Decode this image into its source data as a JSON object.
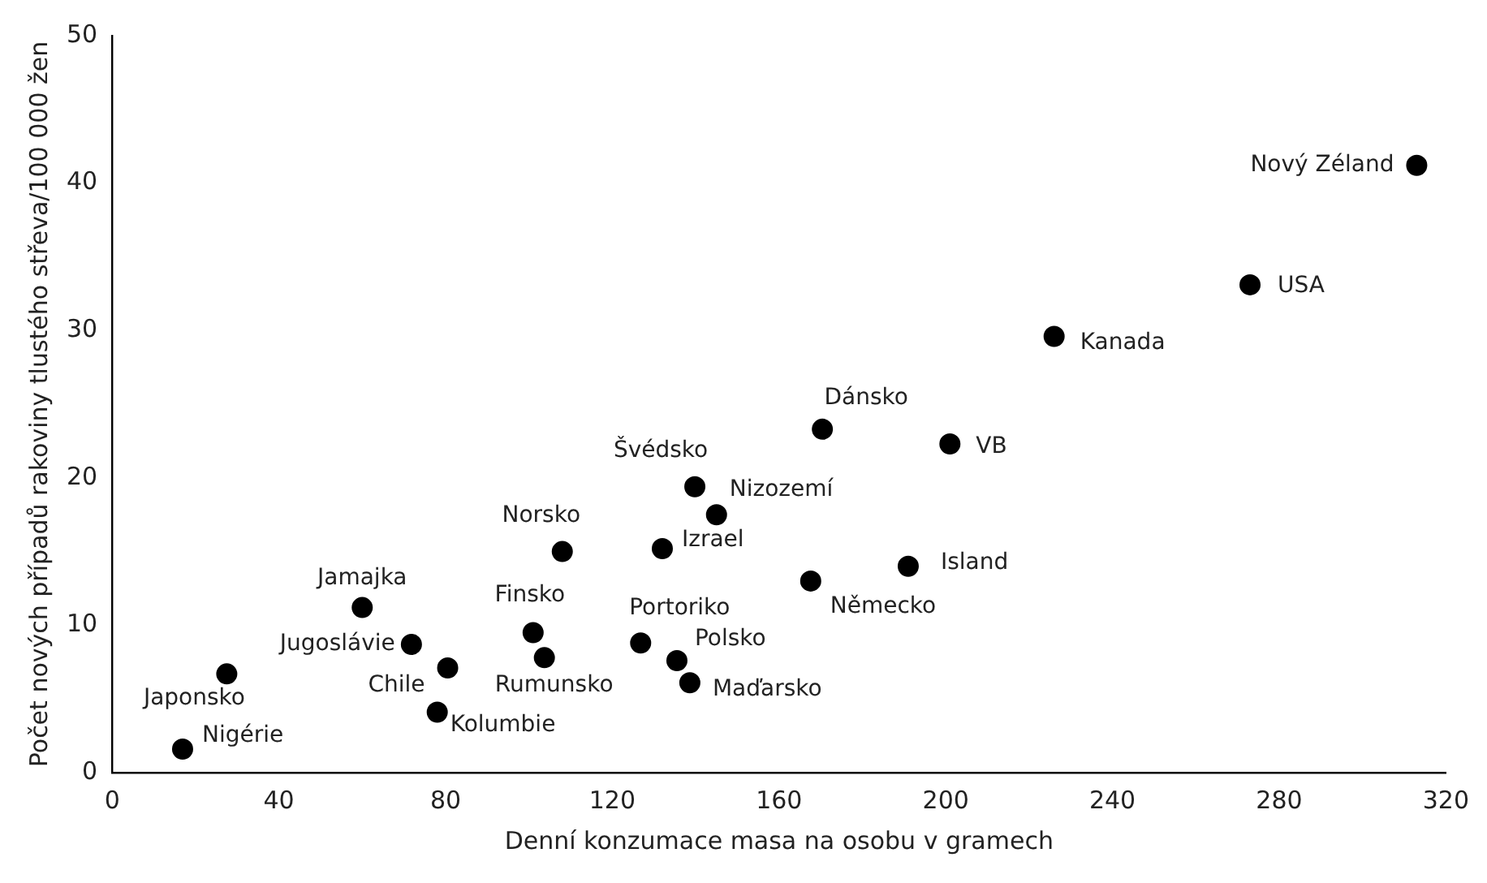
{
  "chart_data": {
    "type": "scatter",
    "xlabel": "Denní konzumace masa na osobu v gramech",
    "ylabel": "Počet nových případů rakoviny tlustého střeva/100 000 žen",
    "x": [
      16.9,
      27.5,
      60,
      71.8,
      80.5,
      78,
      101,
      103.7,
      108,
      126.8,
      135.5,
      138.6,
      132,
      139.8,
      145,
      167.6,
      170.4,
      191,
      201,
      226,
      273,
      313
    ],
    "series": [
      {
        "color": "#000000",
        "values": [
          1.6,
          6.7,
          11.2,
          8.7,
          7.1,
          4.1,
          9.5,
          7.8,
          15,
          8.8,
          7.6,
          6.1,
          15.2,
          19.4,
          17.5,
          13,
          23.3,
          14,
          22.3,
          29.6,
          33.1,
          41.2
        ]
      }
    ],
    "annotations": [
      {
        "text": "Nigérie",
        "x": 16.9,
        "y": 1.6
      },
      {
        "text": "Japonsko",
        "x": 27.5,
        "y": 6.7
      },
      {
        "text": "Jamajka",
        "x": 60,
        "y": 11.2
      },
      {
        "text": "Jugoslávie",
        "x": 71.8,
        "y": 8.7
      },
      {
        "text": "Chile",
        "x": 80.5,
        "y": 7.1
      },
      {
        "text": "Kolumbie",
        "x": 78,
        "y": 4.1
      },
      {
        "text": "Finsko",
        "x": 101,
        "y": 9.5
      },
      {
        "text": "Rumunsko",
        "x": 103.7,
        "y": 7.8
      },
      {
        "text": "Norsko",
        "x": 108,
        "y": 15
      },
      {
        "text": "Portoriko",
        "x": 126.8,
        "y": 8.8
      },
      {
        "text": "Polsko",
        "x": 135.5,
        "y": 7.6
      },
      {
        "text": "Maďarsko",
        "x": 138.6,
        "y": 6.1
      },
      {
        "text": "Izrael",
        "x": 132,
        "y": 15.2
      },
      {
        "text": "Švédsko",
        "x": 139.8,
        "y": 19.4
      },
      {
        "text": "Nizozemí",
        "x": 145,
        "y": 17.5
      },
      {
        "text": "Německo",
        "x": 167.6,
        "y": 13
      },
      {
        "text": "Dánsko",
        "x": 170.4,
        "y": 23.3
      },
      {
        "text": "Island",
        "x": 191,
        "y": 14
      },
      {
        "text": "VB",
        "x": 201,
        "y": 22.3
      },
      {
        "text": "Kanada",
        "x": 226,
        "y": 29.6
      },
      {
        "text": "USA",
        "x": 273,
        "y": 33.1
      },
      {
        "text": "Nový Zéland",
        "x": 313,
        "y": 41.2
      }
    ],
    "xlim": [
      0,
      320
    ],
    "xticks": [
      0,
      40,
      80,
      120,
      160,
      200,
      240,
      280,
      320
    ],
    "ylim": [
      0,
      50
    ],
    "yticks": [
      0,
      10,
      20,
      30,
      40,
      50
    ],
    "grid": false,
    "legend": false,
    "marker": "circle"
  }
}
